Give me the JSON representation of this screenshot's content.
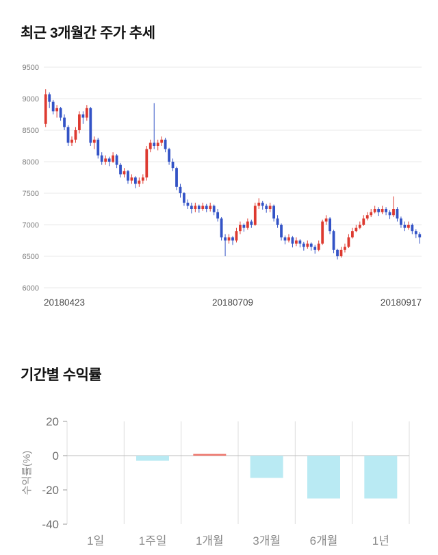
{
  "page": {
    "background": "#ffffff"
  },
  "chart_data": [
    {
      "type": "candlestick",
      "title": "최근 3개월간 주가 추세",
      "ylim": [
        6000,
        9500
      ],
      "y_ticks": [
        9500,
        9000,
        8500,
        8000,
        7500,
        7000,
        6500,
        6000
      ],
      "x_labels": [
        "20180423",
        "20180709",
        "20180917"
      ],
      "up_color": "#dd3a30",
      "down_color": "#3353c6",
      "grid_color": "#e8e8e8",
      "candles_ohlc": [
        [
          8600,
          9150,
          8550,
          9070
        ],
        [
          9070,
          9100,
          8850,
          8950
        ],
        [
          8950,
          8980,
          8750,
          8800
        ],
        [
          8800,
          8900,
          8700,
          8850
        ],
        [
          8850,
          8870,
          8650,
          8700
        ],
        [
          8700,
          8750,
          8500,
          8550
        ],
        [
          8550,
          8580,
          8250,
          8300
        ],
        [
          8300,
          8400,
          8250,
          8350
        ],
        [
          8350,
          8550,
          8300,
          8500
        ],
        [
          8500,
          8800,
          8450,
          8750
        ],
        [
          8750,
          8800,
          8600,
          8700
        ],
        [
          8700,
          8900,
          8650,
          8850
        ],
        [
          8850,
          8870,
          8250,
          8300
        ],
        [
          8300,
          8400,
          8200,
          8350
        ],
        [
          8350,
          8380,
          8050,
          8100
        ],
        [
          8100,
          8150,
          7950,
          8000
        ],
        [
          8000,
          8100,
          7950,
          8050
        ],
        [
          8050,
          8080,
          7930,
          8000
        ],
        [
          8000,
          8150,
          7980,
          8100
        ],
        [
          8100,
          8120,
          7900,
          7950
        ],
        [
          7950,
          7980,
          7750,
          7800
        ],
        [
          7800,
          7900,
          7750,
          7850
        ],
        [
          7850,
          7870,
          7650,
          7700
        ],
        [
          7700,
          7800,
          7650,
          7750
        ],
        [
          7750,
          7770,
          7580,
          7650
        ],
        [
          7650,
          7750,
          7600,
          7700
        ],
        [
          7700,
          7800,
          7650,
          7750
        ],
        [
          7750,
          8250,
          7700,
          8200
        ],
        [
          8200,
          8350,
          8150,
          8300
        ],
        [
          8300,
          8930,
          8200,
          8250
        ],
        [
          8250,
          8350,
          8180,
          8300
        ],
        [
          8300,
          8400,
          8250,
          8350
        ],
        [
          8350,
          8380,
          8150,
          8200
        ],
        [
          8200,
          8220,
          7950,
          8000
        ],
        [
          8000,
          8050,
          7850,
          7900
        ],
        [
          7900,
          7920,
          7550,
          7600
        ],
        [
          7600,
          7650,
          7430,
          7500
        ],
        [
          7500,
          7520,
          7300,
          7350
        ],
        [
          7350,
          7400,
          7250,
          7300
        ],
        [
          7300,
          7350,
          7180,
          7250
        ],
        [
          7250,
          7350,
          7200,
          7300
        ],
        [
          7300,
          7320,
          7190,
          7250
        ],
        [
          7250,
          7350,
          7220,
          7300
        ],
        [
          7300,
          7330,
          7200,
          7250
        ],
        [
          7250,
          7350,
          7210,
          7300
        ],
        [
          7300,
          7320,
          7150,
          7200
        ],
        [
          7200,
          7250,
          7050,
          7100
        ],
        [
          7100,
          7120,
          6750,
          6800
        ],
        [
          6800,
          6850,
          6500,
          6750
        ],
        [
          6750,
          6850,
          6700,
          6800
        ],
        [
          6800,
          6820,
          6680,
          6750
        ],
        [
          6750,
          6950,
          6720,
          6900
        ],
        [
          6900,
          7050,
          6850,
          7000
        ],
        [
          7000,
          7020,
          6890,
          6950
        ],
        [
          6950,
          7100,
          6920,
          7050
        ],
        [
          7050,
          7080,
          6950,
          7000
        ],
        [
          7000,
          7350,
          6980,
          7300
        ],
        [
          7300,
          7420,
          7250,
          7350
        ],
        [
          7350,
          7380,
          7240,
          7300
        ],
        [
          7300,
          7330,
          7190,
          7250
        ],
        [
          7250,
          7350,
          7200,
          7300
        ],
        [
          7300,
          7320,
          7050,
          7100
        ],
        [
          7100,
          7150,
          6950,
          7000
        ],
        [
          7000,
          7020,
          6750,
          6800
        ],
        [
          6800,
          6830,
          6690,
          6750
        ],
        [
          6750,
          6850,
          6720,
          6800
        ],
        [
          6800,
          6820,
          6640,
          6700
        ],
        [
          6700,
          6800,
          6660,
          6750
        ],
        [
          6750,
          6770,
          6640,
          6700
        ],
        [
          6700,
          6730,
          6590,
          6650
        ],
        [
          6650,
          6750,
          6620,
          6700
        ],
        [
          6700,
          6720,
          6590,
          6650
        ],
        [
          6650,
          6680,
          6540,
          6600
        ],
        [
          6600,
          6750,
          6580,
          6700
        ],
        [
          6700,
          7080,
          6680,
          7050
        ],
        [
          7050,
          7150,
          7000,
          7100
        ],
        [
          7100,
          7120,
          6850,
          6900
        ],
        [
          6900,
          6920,
          6550,
          6600
        ],
        [
          6600,
          6620,
          6450,
          6500
        ],
        [
          6500,
          6650,
          6480,
          6600
        ],
        [
          6600,
          6700,
          6560,
          6650
        ],
        [
          6650,
          6850,
          6630,
          6800
        ],
        [
          6800,
          6950,
          6780,
          6900
        ],
        [
          6900,
          7000,
          6880,
          6950
        ],
        [
          6950,
          7050,
          6930,
          7000
        ],
        [
          7000,
          7150,
          6980,
          7100
        ],
        [
          7100,
          7200,
          7070,
          7150
        ],
        [
          7150,
          7250,
          7120,
          7200
        ],
        [
          7200,
          7300,
          7180,
          7250
        ],
        [
          7250,
          7280,
          7140,
          7200
        ],
        [
          7200,
          7300,
          7170,
          7250
        ],
        [
          7250,
          7280,
          7150,
          7200
        ],
        [
          7200,
          7230,
          7090,
          7150
        ],
        [
          7150,
          7450,
          7120,
          7250
        ],
        [
          7250,
          7280,
          7050,
          7100
        ],
        [
          7100,
          7130,
          6950,
          7000
        ],
        [
          7000,
          7050,
          6900,
          6950
        ],
        [
          6950,
          7050,
          6920,
          7000
        ],
        [
          7000,
          7020,
          6850,
          6900
        ],
        [
          6900,
          6930,
          6790,
          6850
        ],
        [
          6850,
          6880,
          6700,
          6800
        ]
      ]
    },
    {
      "type": "bar",
      "title": "기간별 수익률",
      "ylabel": "수익률(%)",
      "ylim": [
        -40,
        20
      ],
      "y_ticks": [
        20,
        0,
        -20,
        -40
      ],
      "categories": [
        "1일",
        "1주일",
        "1개월",
        "3개월",
        "6개월",
        "1년"
      ],
      "values": [
        0,
        -3,
        1,
        -13,
        -25,
        -25
      ],
      "positive_color": "#ed756b",
      "negative_color": "#b9eaf3",
      "grid_color": "#dcdcdc",
      "zero_line_color": "#bdbdbd"
    }
  ]
}
